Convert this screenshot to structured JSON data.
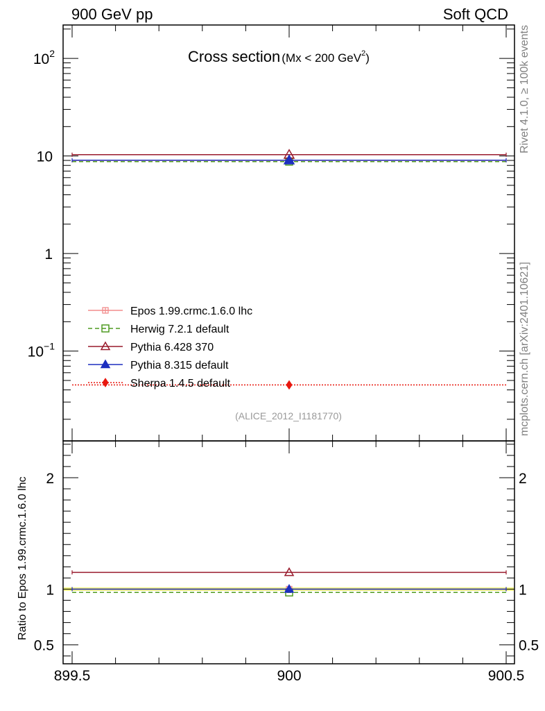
{
  "header": {
    "left": "900 GeV pp",
    "right": "Soft QCD"
  },
  "side_labels": {
    "rivet": "Rivet 4.1.0, ≥ 100k events",
    "mcplots": "mcplots.cern.ch [arXiv:2401.10621]"
  },
  "chart_data": {
    "type": "scatter",
    "title_main": "Cross section",
    "title_sub": "(Mx < 200 GeV",
    "title_sup": "2",
    "title_close": ")",
    "watermark": "(ALICE_2012_I1181770)",
    "x_range": [
      899.5,
      900.5
    ],
    "x_ticks": [
      {
        "value": 899.5,
        "label": "899.5"
      },
      {
        "value": 900,
        "label": "900"
      },
      {
        "value": 900.5,
        "label": "900.5"
      }
    ],
    "main_panel": {
      "yscale": "log",
      "ylim": [
        0.012,
        220
      ],
      "y_ticks": [
        {
          "value": 100,
          "base": "10",
          "exp": "2"
        },
        {
          "value": 10,
          "base": "10",
          "exp": ""
        },
        {
          "value": 1,
          "base": "1",
          "exp": ""
        },
        {
          "value": 0.1,
          "base": "10",
          "exp": "−1"
        }
      ]
    },
    "ratio_panel": {
      "ylabel": "Ratio to Epos 1.99.crmc.1.6.0 lhc",
      "ylim": [
        0.33,
        2.33
      ],
      "band": [
        0.985,
        1.015
      ],
      "y_ticks": [
        {
          "value": 0.5,
          "label": "0.5"
        },
        {
          "value": 1,
          "label": "1"
        },
        {
          "value": 2,
          "label": "2"
        }
      ]
    },
    "series": [
      {
        "name": "Epos 1.99.crmc.1.6.0 lhc",
        "color": "#f28c8c",
        "dash": "",
        "marker": "crossbox",
        "x": 900,
        "y": 9.0,
        "ratio": 1.0
      },
      {
        "name": "Herwig 7.2.1 default",
        "color": "#4f9a21",
        "dash": "6,4",
        "marker": "square-open",
        "x": 900,
        "y": 8.75,
        "ratio": 0.97
      },
      {
        "name": "Pythia 6.428 370",
        "color": "#991a2c",
        "dash": "",
        "marker": "triangle-open",
        "x": 900,
        "y": 10.3,
        "ratio": 1.15
      },
      {
        "name": "Pythia 8.315 default",
        "color": "#1d2fbf",
        "dash": "",
        "marker": "triangle-filled",
        "x": 900,
        "y": 9.05,
        "ratio": 1.0
      },
      {
        "name": "Sherpa 1.4.5 default",
        "color": "#e8170e",
        "dash": "2,2",
        "marker": "diamond-filled",
        "x": 900,
        "y": 0.045,
        "ratio": null
      }
    ]
  }
}
